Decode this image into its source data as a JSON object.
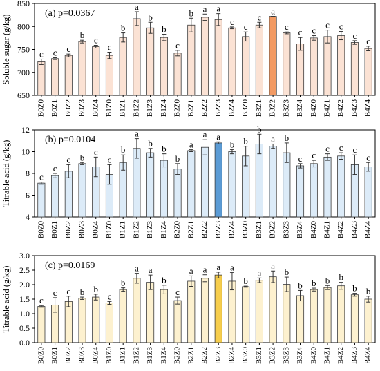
{
  "chart_data": [
    {
      "type": "bar",
      "panel": "(a)",
      "annotation": "p=0.0367",
      "ylabel": "Soluble sugar (g/kg)",
      "ylim": [
        650,
        850
      ],
      "yticks": [
        650,
        700,
        750,
        800,
        850
      ],
      "ytick_labels": [
        "650",
        "700",
        "750",
        "800",
        "850"
      ],
      "categories": [
        "B0Z0",
        "B0Z1",
        "B0Z2",
        "B0Z3",
        "B0Z4",
        "B1Z0",
        "B1Z1",
        "B1Z2",
        "B1Z3",
        "B1Z4",
        "B2Z0",
        "B2Z1",
        "B2Z2",
        "B2Z3",
        "B2Z4",
        "B3Z0",
        "B3Z1",
        "B3Z2",
        "B3Z3",
        "B3Z4",
        "B4Z0",
        "B4Z1",
        "B4Z2",
        "B4Z3",
        "B4Z4"
      ],
      "values": [
        723,
        730,
        737,
        767,
        756,
        737,
        776,
        817,
        797,
        776,
        742,
        803,
        820,
        815,
        797,
        778,
        803,
        822,
        786,
        762,
        775,
        778,
        780,
        765,
        752
      ],
      "errors": [
        6,
        2,
        3,
        3,
        3,
        7,
        10,
        15,
        12,
        7,
        6,
        15,
        7,
        13,
        2,
        10,
        6,
        0,
        2,
        14,
        5,
        14,
        9,
        4,
        5
      ],
      "letters": [
        "c",
        "c",
        "c",
        "b",
        "c",
        "c",
        "b",
        "a",
        "b",
        "b",
        "c",
        "b",
        "a",
        "a",
        "c",
        "c",
        "c",
        "a",
        "c",
        "c",
        "c",
        "c",
        "c",
        "c",
        "c"
      ],
      "highlight_index": 17,
      "bar_color": "#fbe2d4",
      "highlight_color": "#f29a63"
    },
    {
      "type": "bar",
      "panel": "(b)",
      "annotation": "p=0.0104",
      "ylabel": "Titrable acid (g/kg)",
      "ylim": [
        4,
        12
      ],
      "yticks": [
        4,
        6,
        8,
        10,
        12
      ],
      "ytick_labels": [
        "4",
        "6",
        "8",
        "10",
        "12"
      ],
      "categories": [
        "B0Z0",
        "B0Z1",
        "B0Z2",
        "B0Z3",
        "B0Z4",
        "B1Z0",
        "B1Z1",
        "B1Z2",
        "B1Z3",
        "B1Z4",
        "B2Z0",
        "B2Z1",
        "B2Z2",
        "B2Z3",
        "B2Z4",
        "B3Z0",
        "B3Z1",
        "B3Z2",
        "B3Z3",
        "B3Z4",
        "B4Z0",
        "B4Z1",
        "B4Z2",
        "B4Z3",
        "B4Z4"
      ],
      "values": [
        7.1,
        7.8,
        8.2,
        8.9,
        8.6,
        7.9,
        9.0,
        10.3,
        9.9,
        9.2,
        8.4,
        10.1,
        10.4,
        10.8,
        10.0,
        9.6,
        10.7,
        10.5,
        9.9,
        8.7,
        8.9,
        9.5,
        9.6,
        8.8,
        8.6
      ],
      "errors": [
        0.1,
        0.2,
        0.6,
        0.1,
        0.9,
        0.9,
        0.7,
        0.9,
        0.4,
        0.6,
        0.5,
        0.1,
        0.7,
        0.1,
        0.2,
        0.9,
        0.9,
        0.2,
        0.9,
        0.2,
        0.3,
        0.3,
        0.3,
        0.9,
        0.4
      ],
      "letters": [
        "c",
        "c",
        "c",
        "b",
        "c",
        "c",
        "b",
        "a",
        "b",
        "b",
        "b",
        "a",
        "a",
        "a",
        "b",
        "b",
        "b",
        "a",
        "b",
        "c",
        "c",
        "c",
        "c",
        "c",
        "c"
      ],
      "highlight_index": 13,
      "bar_color": "#dcebf8",
      "highlight_color": "#5b9bd5"
    },
    {
      "type": "bar",
      "panel": "(c)",
      "annotation": "p=0.0169",
      "ylabel": "Titrable acid (g/kg)",
      "ylim": [
        0,
        3.0
      ],
      "yticks": [
        0,
        0.5,
        1.0,
        1.5,
        2.0,
        2.5,
        3.0
      ],
      "ytick_labels": [
        "0.0",
        "0.5",
        "1.0",
        "1.5",
        "2.0",
        "2.5",
        "3.0"
      ],
      "categories": [
        "B0Z0",
        "B0Z1",
        "B0Z2",
        "B0Z3",
        "B0Z4",
        "B1Z0",
        "B1Z1",
        "B1Z2",
        "B1Z3",
        "B1Z4",
        "B2Z0",
        "B2Z1",
        "B2Z2",
        "B2Z3",
        "B2Z4",
        "B3Z0",
        "B3Z1",
        "B3Z2",
        "B3Z3",
        "B3Z4",
        "B4Z0",
        "B4Z1",
        "B4Z2",
        "B4Z3",
        "B4Z4"
      ],
      "values": [
        1.25,
        1.3,
        1.42,
        1.53,
        1.57,
        1.37,
        1.83,
        2.22,
        2.08,
        1.83,
        1.45,
        2.12,
        2.22,
        2.33,
        2.12,
        1.93,
        2.15,
        2.27,
        2.01,
        1.62,
        1.83,
        1.9,
        1.96,
        1.65,
        1.5
      ],
      "errors": [
        0.03,
        0.25,
        0.18,
        0.04,
        0.1,
        0.05,
        0.06,
        0.17,
        0.25,
        0.15,
        0.12,
        0.18,
        0.12,
        0.1,
        0.3,
        0.02,
        0.08,
        0.2,
        0.25,
        0.18,
        0.05,
        0.07,
        0.12,
        0.05,
        0.1
      ],
      "letters": [
        "c",
        "c",
        "c",
        "b",
        "b",
        "c",
        "b",
        "a",
        "a",
        "b",
        "c",
        "a",
        "a",
        "a",
        "a",
        "b",
        "a",
        "a",
        "b",
        "b",
        "b",
        "b",
        "b",
        "b",
        "b"
      ],
      "highlight_index": 13,
      "bar_color": "#fdf1cf",
      "highlight_color": "#f6cd4c"
    }
  ]
}
